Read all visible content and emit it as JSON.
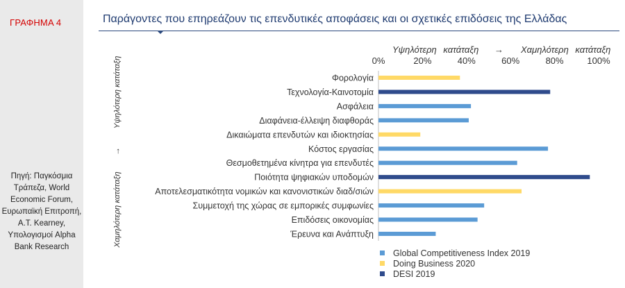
{
  "figure_label": "ΓΡΑΦΗΜΑ 4",
  "source": "Πηγή: Παγκόσμια Τράπεζα, World Economic Forum, Ευρωπαϊκή Επιτροπή, A.T. Kearney, Υπολογισμοί Alpha Bank Research",
  "colors": {
    "gci": "#5b9bd5",
    "db": "#ffd966",
    "desi": "#2f4b8c",
    "title": "#1f3b70",
    "label_red": "#d40000"
  },
  "chart_data": {
    "type": "bar",
    "orientation": "horizontal",
    "title": "Παράγοντες που επηρεάζουν τις επενδυτικές αποφάσεις και οι σχετικές επιδόσεις της Ελλάδας",
    "axis_header": {
      "left": "Υψηλότερη κατάταξη",
      "arrow": "→",
      "right": "Χαμηλότερη κατάταξη"
    },
    "xlim": [
      0,
      100
    ],
    "xticks": [
      0,
      20,
      40,
      60,
      80,
      100
    ],
    "xtick_labels": [
      "0%",
      "20%",
      "40%",
      "60%",
      "80%",
      "100%"
    ],
    "y_side_label": {
      "top": "Υψηλότερη κατάταξη",
      "arrow": "→",
      "bottom": "Χαμηλότερη κατάταξη"
    },
    "legend": [
      {
        "key": "gci",
        "label": "Global Competitiveness Index 2019"
      },
      {
        "key": "db",
        "label": "Doing Business 2020"
      },
      {
        "key": "desi",
        "label": "DESI 2019"
      }
    ],
    "bars": [
      {
        "category": "Φορολογία",
        "value": 37,
        "series": "db"
      },
      {
        "category": "Τεχνολογία-Καινοτομία",
        "value": 78,
        "series": "desi"
      },
      {
        "category": "Ασφάλεια",
        "value": 42,
        "series": "gci"
      },
      {
        "category": "Διαφάνεια-έλλειψη διαφθοράς",
        "value": 41,
        "series": "gci"
      },
      {
        "category": "Δικαιώματα επενδυτών και ιδιοκτησίας",
        "value": 19,
        "series": "db"
      },
      {
        "category": "Κόστος εργασίας",
        "value": 77,
        "series": "gci"
      },
      {
        "category": "Θεσμοθετημένα κίνητρα για επενδυτές",
        "value": 63,
        "series": "gci"
      },
      {
        "category": "Ποιότητα ψηφιακών υποδομών",
        "value": 96,
        "series": "desi"
      },
      {
        "category": "Αποτελεσματικότητα νομικών και κανονιστικών διαδ/σιών",
        "value": 65,
        "series": "db"
      },
      {
        "category": "Συμμετοχή της χώρας σε εμπορικές συμφωνίες",
        "value": 48,
        "series": "gci"
      },
      {
        "category": "Επιδόσεις οικονομίας",
        "value": 45,
        "series": "gci"
      },
      {
        "category": "Έρευνα και Ανάπτυξη",
        "value": 26,
        "series": "gci"
      }
    ]
  }
}
